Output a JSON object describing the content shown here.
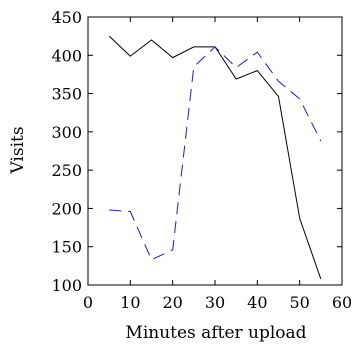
{
  "chart_data": {
    "type": "line",
    "title": "",
    "xlabel": "Minutes after upload",
    "ylabel": "Visits",
    "xlim": [
      0,
      60
    ],
    "ylim": [
      100,
      450
    ],
    "xticks": [
      0,
      10,
      20,
      30,
      40,
      50,
      60
    ],
    "yticks": [
      100,
      150,
      200,
      250,
      300,
      350,
      400,
      450
    ],
    "grid": false,
    "legend": "none",
    "series": [
      {
        "style": "solid",
        "color": "#000000",
        "x": [
          5,
          10,
          15,
          20,
          25,
          30,
          35,
          40,
          45,
          50,
          55
        ],
        "y": [
          425,
          399,
          420,
          397,
          411,
          411,
          369,
          380,
          346,
          187,
          108
        ]
      },
      {
        "style": "dashed",
        "color": "#1a1adb",
        "x": [
          5,
          10,
          15,
          20,
          25,
          30,
          35,
          40,
          45,
          50,
          55
        ],
        "y": [
          198,
          196,
          133,
          146,
          385,
          411,
          384,
          404,
          366,
          343,
          288
        ]
      }
    ]
  }
}
